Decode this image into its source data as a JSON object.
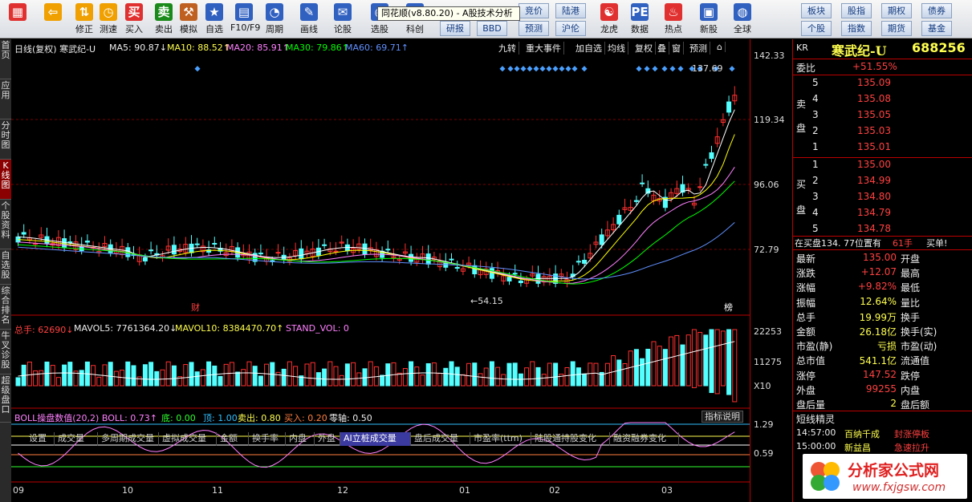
{
  "toolbar": {
    "items": [
      {
        "label": "",
        "icon": "windows-icon",
        "color": "#e03030"
      },
      {
        "label": "",
        "icon": "back-arrow-icon",
        "color": "#f0a000"
      },
      {
        "label": "修正",
        "icon": "arrow-updown-icon",
        "color": "#f0a000"
      },
      {
        "label": "测速",
        "icon": "clock-icon",
        "color": "#f0a000"
      },
      {
        "label": "买入",
        "icon": "buy-icon",
        "color": "#e03030"
      },
      {
        "label": "卖出",
        "icon": "sell-icon",
        "color": "#1a8a1a"
      },
      {
        "label": "模拟",
        "icon": "hammer-icon",
        "color": "#c06020"
      },
      {
        "label": "自选",
        "icon": "star-icon",
        "color": "#3060c0"
      },
      {
        "label": "F10/F9",
        "icon": "f10-icon",
        "color": "#3060c0"
      },
      {
        "label": "周期",
        "icon": "period-icon",
        "color": "#3060c0"
      },
      {
        "label": "画线",
        "icon": "pencil-icon",
        "color": "#3060c0"
      },
      {
        "label": "论股",
        "icon": "chat-icon",
        "color": "#3060c0"
      },
      {
        "label": "选股",
        "icon": "select-icon",
        "color": "#3060c0"
      },
      {
        "label": "科创",
        "icon": "kechuang-icon",
        "color": "#3060c0"
      },
      {
        "label": "龙虎",
        "icon": "dragon-icon",
        "color": "#e03030"
      },
      {
        "label": "数据",
        "icon": "pe-icon",
        "color": "#3060c0"
      },
      {
        "label": "热点",
        "icon": "hot-icon",
        "color": "#e03030"
      },
      {
        "label": "新股",
        "icon": "ipo-icon",
        "color": "#3060c0"
      },
      {
        "label": "全球",
        "icon": "globe-icon",
        "color": "#3060c0"
      }
    ],
    "text_buttons": [
      "竞价",
      "陆港",
      "研报",
      "BBD",
      "预测",
      "沪伦",
      "板块",
      "股指",
      "期权",
      "债券",
      "个股",
      "指数",
      "期货",
      "基金"
    ],
    "tooltip": "同花顺(v8.80.20) - A股技术分析"
  },
  "leftnav": [
    "首页",
    "应用",
    "分时图",
    "K线图",
    "个股资料",
    "自选股",
    "综合排名",
    "牛叉诊股",
    "超级盘口"
  ],
  "header": {
    "title": "日线(复权) 寒武纪-U",
    "ma5": "MA5: 90.87↓",
    "ma10": "MA10: 88.52↑",
    "ma20": "MA20: 85.91↑",
    "ma30": "MA30: 79.86↑",
    "ma60": "MA60: 69.71↑",
    "right_buttons": [
      "九转",
      "重大事件",
      "加自选",
      "均线",
      "复权",
      "叠",
      "窗",
      "预测",
      "⌂"
    ]
  },
  "price_scale": [
    "142.33",
    "119.34",
    "96.06",
    "72.79"
  ],
  "annotations": {
    "high": "137.69",
    "low": "54.15",
    "tag_cai": "财",
    "tag_bang": "榜"
  },
  "volume": {
    "header_total": "总手: 62690↓",
    "mavol5": "MAVOL5: 7761364.20↓",
    "mavol10": "MAVOL10: 8384470.70↑",
    "stand": "STAND_VOL: 0",
    "scale": [
      "22253",
      "11275",
      "X10"
    ]
  },
  "tabs": [
    "设置",
    "成交量",
    "多周期成交量",
    "虚拟成交量",
    "金额",
    "换手率",
    "内盘",
    "外盘",
    "AI立桩成交量",
    "盘后成交量",
    "市盈率(ttm)",
    "陆股通持股变化",
    "融资融券变化"
  ],
  "indicator": {
    "header": "BOLL操盘数值(20,2) BOLL: 0.73↑",
    "di": "底: 0.00",
    "ding": "顶: 1.00",
    "maichu": "卖出: 0.80",
    "mairu": "买入: 0.20",
    "lingzhou": "零轴: 0.50",
    "button": "指标说明",
    "scale": [
      "1.29",
      "0.59"
    ]
  },
  "xaxis": [
    "09",
    "10",
    "11",
    "12",
    "01",
    "02",
    "03"
  ],
  "quote": {
    "kr": "KR",
    "name": "寒武纪-U",
    "code": "688256",
    "weibi_label": "委比",
    "weibi": "+51.55%",
    "sell_label": "卖盘",
    "buy_label": "买盘",
    "sells": [
      [
        "5",
        "135.09"
      ],
      [
        "4",
        "135.08"
      ],
      [
        "3",
        "135.05"
      ],
      [
        "2",
        "135.03"
      ],
      [
        "1",
        "135.01"
      ]
    ],
    "buys": [
      [
        "1",
        "135.00"
      ],
      [
        "2",
        "134.99"
      ],
      [
        "3",
        "134.80"
      ],
      [
        "4",
        "134.79"
      ],
      [
        "5",
        "134.78"
      ]
    ],
    "notice": "在买盘134. 77位置有",
    "notice_hands": "61手",
    "notice_buy": "买单!",
    "stats": [
      {
        "l": "最新",
        "v": "135.00",
        "l2": "开盘"
      },
      {
        "l": "涨跌",
        "v": "+12.07",
        "l2": "最高"
      },
      {
        "l": "涨幅",
        "v": "+9.82%",
        "l2": "最低"
      },
      {
        "l": "振幅",
        "v": "12.64%",
        "l2": "量比"
      },
      {
        "l": "总手",
        "v": "19.99万",
        "l2": "换手"
      },
      {
        "l": "金额",
        "v": "26.18亿",
        "l2": "换手(实)"
      },
      {
        "l": "市盈(静)",
        "v": "亏损",
        "l2": "市盈(动)"
      },
      {
        "l": "总市值",
        "v": "541.1亿",
        "l2": "流通值"
      },
      {
        "l": "涨停",
        "v": "147.52",
        "l2": "跌停"
      },
      {
        "l": "外盘",
        "v": "99255",
        "l2": "内盘"
      },
      {
        "l": "盘后量",
        "v": "2",
        "l2": "盘后额"
      }
    ],
    "short_title": "短线精灵",
    "short_items": [
      {
        "t": "14:57:00",
        "n": "百纳千成",
        "e": "封涨停板"
      },
      {
        "t": "15:00:00",
        "n": "新益昌",
        "e": "急速拉升"
      }
    ]
  },
  "watermark": {
    "text": "分析家公式网",
    "url": "www.fxjgsw.com"
  },
  "colors": {
    "up": "#ff3030",
    "down": "#54ffff",
    "ma5": "#ffffff",
    "ma10": "#ffff00",
    "ma20": "#ff80ff",
    "ma30": "#00ff00",
    "ma60": "#6090ff"
  }
}
